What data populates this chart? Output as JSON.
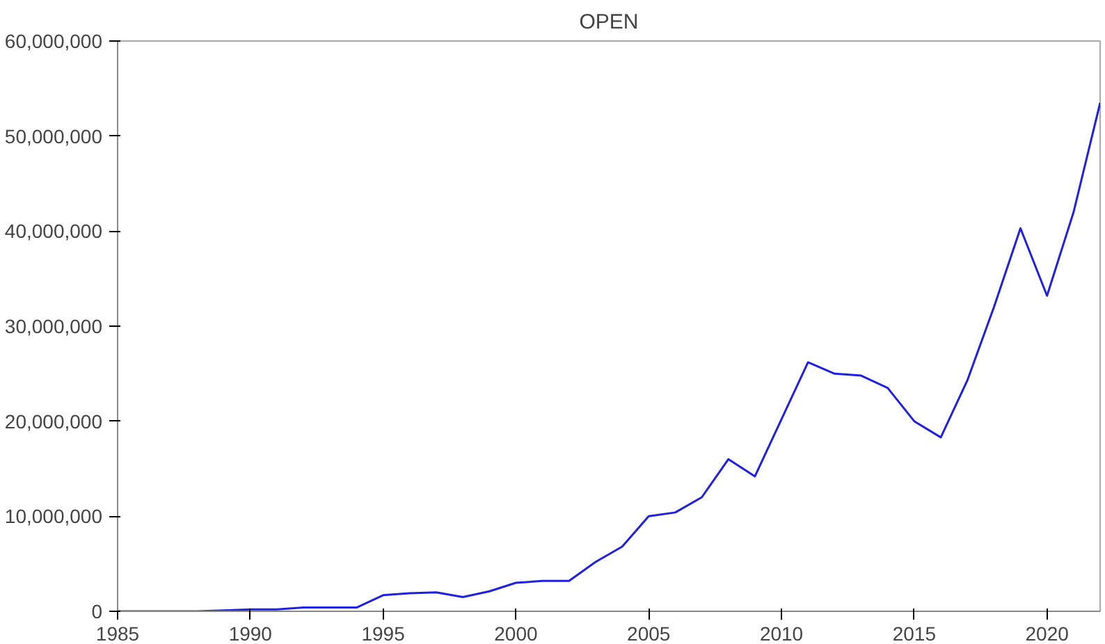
{
  "chart_data": {
    "type": "line",
    "title": "OPEN",
    "x": [
      1985,
      1986,
      1987,
      1988,
      1989,
      1990,
      1991,
      1992,
      1993,
      1994,
      1995,
      1996,
      1997,
      1998,
      1999,
      2000,
      2001,
      2002,
      2003,
      2004,
      2005,
      2006,
      2007,
      2008,
      2009,
      2010,
      2011,
      2012,
      2013,
      2014,
      2015,
      2016,
      2017,
      2018,
      2019,
      2020,
      2021,
      2022
    ],
    "series": [
      {
        "color": "#2020e0",
        "values": [
          0,
          0,
          0,
          0,
          100000,
          200000,
          200000,
          400000,
          400000,
          400000,
          1700000,
          1900000,
          2000000,
          1500000,
          2100000,
          3000000,
          3200000,
          3200000,
          5200000,
          6800000,
          10000000,
          10400000,
          12000000,
          16000000,
          14200000,
          20200000,
          26200000,
          25000000,
          24800000,
          23500000,
          20000000,
          18300000,
          24300000,
          32000000,
          40300000,
          33200000,
          42000000,
          53500000
        ]
      }
    ],
    "xlim": [
      1985,
      2022
    ],
    "xticks": [
      1985,
      1990,
      1995,
      2000,
      2005,
      2010,
      2015,
      2020
    ],
    "ylim": [
      0,
      60000000
    ],
    "yticks": [
      {
        "value": 0,
        "label": "0"
      },
      {
        "value": 10000000,
        "label": "10,000,000"
      },
      {
        "value": 20000000,
        "label": "20,000,000"
      },
      {
        "value": 30000000,
        "label": "30,000,000"
      },
      {
        "value": 40000000,
        "label": "40,000,000"
      },
      {
        "value": 50000000,
        "label": "50,000,000"
      },
      {
        "value": 60000000,
        "label": "60,000,000"
      }
    ],
    "grid": false
  }
}
